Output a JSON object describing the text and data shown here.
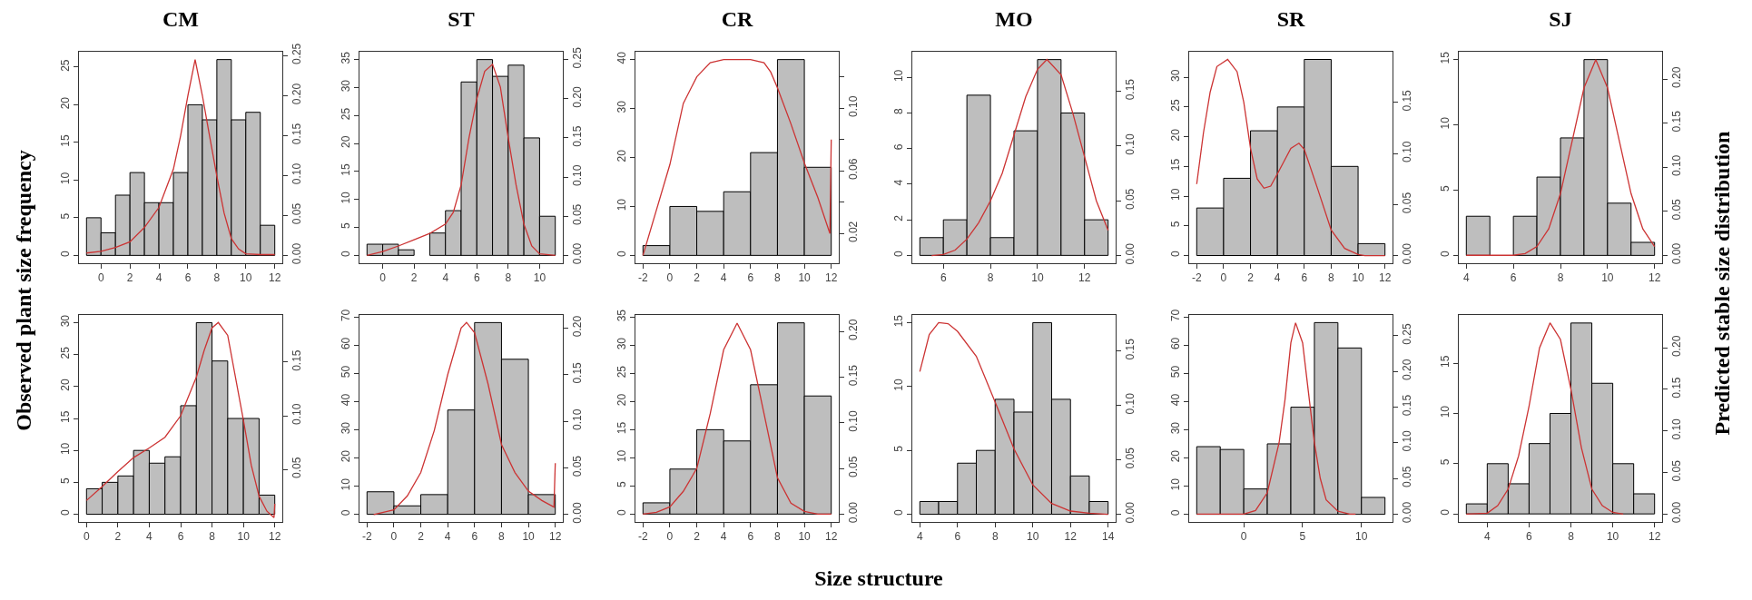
{
  "chart_data": [
    {
      "type": "histogram",
      "title": "CM",
      "color": "#bebebe",
      "bins": [
        -1,
        0,
        1,
        2,
        3,
        4,
        5,
        6,
        7,
        8,
        9,
        10,
        11,
        12
      ],
      "values": [
        5,
        3,
        8,
        11,
        7,
        7,
        11,
        20,
        18,
        26,
        18,
        19,
        4
      ],
      "xlim": [
        -1.52,
        12.52
      ],
      "xticks": [
        0,
        2,
        4,
        6,
        8,
        10,
        12
      ],
      "ylim": [
        -1.04,
        27.04
      ],
      "yticks": [
        0,
        5,
        10,
        15,
        20,
        25
      ],
      "y2lim": [
        -0.0098,
        0.2548
      ],
      "y2ticks": [
        {
          "value": 0,
          "label": "0.00"
        },
        {
          "value": 0.05,
          "label": "0.05"
        },
        {
          "value": 0.1,
          "label": "0.10"
        },
        {
          "value": 0.15,
          "label": "0.15"
        },
        {
          "value": 0.2,
          "label": "0.20"
        },
        {
          "value": 0.25,
          "label": "0.25"
        }
      ],
      "series": [
        {
          "type": "line",
          "axis": "y2",
          "color": "#cc3333",
          "x": [
            -1,
            0,
            1,
            2,
            3,
            4,
            5,
            5.5,
            6,
            6.5,
            7,
            7.5,
            8,
            8.5,
            9,
            9.5,
            10,
            11,
            12
          ],
          "values": [
            0.003,
            0.005,
            0.01,
            0.017,
            0.035,
            0.06,
            0.108,
            0.15,
            0.2,
            0.245,
            0.2,
            0.149,
            0.099,
            0.053,
            0.021,
            0.008,
            0.002,
            0.001,
            0.001
          ]
        }
      ]
    },
    {
      "type": "histogram",
      "title": "ST",
      "color": "#bebebe",
      "bins": [
        -1,
        0,
        1,
        2,
        3,
        4,
        5,
        6,
        7,
        8,
        9,
        10,
        11
      ],
      "values": [
        2,
        2,
        1,
        0,
        4,
        8,
        31,
        35,
        32,
        34,
        21,
        7
      ],
      "xlim": [
        -1.48,
        11.48
      ],
      "xticks": [
        0,
        2,
        4,
        6,
        8,
        10
      ],
      "ylim": [
        -1.4,
        36.4
      ],
      "yticks": [
        0,
        5,
        10,
        15,
        20,
        25,
        30,
        35
      ],
      "y2lim": [
        -0.01,
        0.26
      ],
      "y2ticks": [
        {
          "value": 0,
          "label": "0.00"
        },
        {
          "value": 0.05,
          "label": "0.05"
        },
        {
          "value": 0.1,
          "label": "0.10"
        },
        {
          "value": 0.15,
          "label": "0.15"
        },
        {
          "value": 0.2,
          "label": "0.20"
        },
        {
          "value": 0.25,
          "label": "0.25"
        }
      ],
      "series": [
        {
          "type": "line",
          "axis": "y2",
          "color": "#cc3333",
          "x": [
            -1,
            0,
            1,
            2,
            3,
            4,
            4.5,
            5,
            5.5,
            6,
            6.5,
            7,
            7.5,
            8,
            8.5,
            9,
            9.5,
            10,
            11
          ],
          "values": [
            0,
            0.005,
            0.012,
            0.02,
            0.028,
            0.04,
            0.055,
            0.09,
            0.15,
            0.2,
            0.235,
            0.244,
            0.215,
            0.15,
            0.09,
            0.04,
            0.012,
            0.002,
            0
          ]
        }
      ]
    },
    {
      "type": "histogram",
      "title": "CR",
      "color": "#bebebe",
      "bins": [
        -2,
        0,
        2,
        4,
        6,
        8,
        10,
        12
      ],
      "values": [
        2,
        10,
        9,
        13,
        21,
        40,
        18
      ],
      "xlim": [
        -2.56,
        12.56
      ],
      "xticks": [
        -2,
        0,
        2,
        4,
        6,
        8,
        10,
        12
      ],
      "ylim": [
        -1.6,
        41.6
      ],
      "yticks": [
        0,
        10,
        20,
        30,
        40
      ],
      "y2lim": [
        0.001,
        0.136
      ],
      "y2ticks": [
        0.02,
        {
          "value": 0.04,
          "label": null
        },
        0.06,
        {
          "value": 0.08,
          "label": null
        },
        {
          "value": 0.1,
          "label": "0.10"
        },
        {
          "value": 0.12,
          "label": null
        }
      ],
      "series": [
        {
          "type": "line",
          "axis": "y2",
          "color": "#cc3333",
          "x": [
            -2,
            -1,
            0,
            1,
            2,
            3,
            4,
            5,
            6,
            7,
            7.5,
            8,
            9,
            10,
            11,
            11.9,
            12
          ],
          "values": [
            0.006,
            0.035,
            0.064,
            0.103,
            0.12,
            0.129,
            0.131,
            0.131,
            0.131,
            0.129,
            0.123,
            0.113,
            0.09,
            0.065,
            0.043,
            0.02,
            0.08
          ]
        }
      ]
    },
    {
      "type": "histogram",
      "title": "MO",
      "color": "#bebebe",
      "bins": [
        5,
        6,
        7,
        8,
        9,
        10,
        11,
        12,
        13
      ],
      "values": [
        1,
        2,
        9,
        1,
        7,
        11,
        8,
        2
      ],
      "xlim": [
        4.68,
        13.32
      ],
      "xticks": [
        6,
        8,
        10,
        12
      ],
      "ylim": [
        -0.44,
        11.44
      ],
      "yticks": [
        0,
        2,
        4,
        6,
        8,
        10
      ],
      "y2lim": [
        -0.007,
        0.186
      ],
      "y2ticks": [
        {
          "value": 0,
          "label": "0.00"
        },
        {
          "value": 0.05,
          "label": "0.05"
        },
        {
          "value": 0.1,
          "label": "0.10"
        },
        {
          "value": 0.15,
          "label": "0.15"
        }
      ],
      "series": [
        {
          "type": "line",
          "axis": "y2",
          "color": "#cc3333",
          "x": [
            5.5,
            6,
            6.5,
            7,
            7.5,
            8,
            8.5,
            9,
            9.5,
            10,
            10.4,
            11,
            11.5,
            12,
            12.5,
            13
          ],
          "values": [
            0,
            0.001,
            0.005,
            0.015,
            0.03,
            0.05,
            0.075,
            0.11,
            0.145,
            0.17,
            0.179,
            0.165,
            0.13,
            0.09,
            0.05,
            0.023
          ]
        }
      ]
    },
    {
      "type": "histogram",
      "title": "SR",
      "color": "#bebebe",
      "bins": [
        -2,
        0,
        2,
        4,
        6,
        8,
        10,
        12
      ],
      "values": [
        8,
        13,
        21,
        25,
        33,
        15,
        2
      ],
      "xlim": [
        -2.56,
        12.56
      ],
      "xticks": [
        -2,
        0,
        2,
        4,
        6,
        8,
        10,
        12
      ],
      "ylim": [
        -1.3,
        34.3
      ],
      "yticks": [
        0,
        5,
        10,
        15,
        20,
        25,
        30
      ],
      "y2lim": [
        -0.0075,
        0.1995
      ],
      "y2ticks": [
        {
          "value": 0,
          "label": "0.00"
        },
        {
          "value": 0.05,
          "label": "0.05"
        },
        {
          "value": 0.1,
          "label": "0.10"
        },
        {
          "value": 0.15,
          "label": "0.15"
        }
      ],
      "series": [
        {
          "type": "line",
          "axis": "y2",
          "color": "#cc3333",
          "x": [
            -2,
            -1.5,
            -1,
            -0.5,
            0.3,
            1,
            1.5,
            2,
            2.5,
            3,
            3.5,
            4,
            5,
            5.6,
            6,
            7,
            8,
            9,
            10,
            10.5,
            12
          ],
          "values": [
            0.07,
            0.12,
            0.16,
            0.185,
            0.192,
            0.18,
            0.15,
            0.105,
            0.075,
            0.066,
            0.068,
            0.08,
            0.105,
            0.11,
            0.104,
            0.065,
            0.025,
            0.007,
            0.001,
            0,
            0
          ]
        }
      ]
    },
    {
      "type": "histogram",
      "title": "SJ",
      "color": "#bebebe",
      "bins": [
        4,
        5,
        6,
        7,
        8,
        9,
        10,
        11,
        12
      ],
      "values": [
        3,
        0,
        3,
        6,
        9,
        15,
        4,
        1
      ],
      "xlim": [
        3.68,
        12.32
      ],
      "xticks": [
        4,
        6,
        8,
        10,
        12
      ],
      "ylim": [
        -0.6,
        15.6
      ],
      "yticks": [
        0,
        5,
        10,
        15
      ],
      "y2lim": [
        -0.009,
        0.231
      ],
      "y2ticks": [
        {
          "value": 0,
          "label": "0.00"
        },
        {
          "value": 0.05,
          "label": "0.05"
        },
        {
          "value": 0.1,
          "label": "0.10"
        },
        {
          "value": 0.15,
          "label": "0.15"
        },
        {
          "value": 0.2,
          "label": "0.20"
        }
      ],
      "series": [
        {
          "type": "line",
          "axis": "y2",
          "color": "#cc3333",
          "x": [
            4,
            6,
            6.5,
            7,
            7.5,
            8,
            8.5,
            9,
            9.5,
            10,
            10.5,
            11,
            11.5,
            12
          ],
          "values": [
            0,
            0,
            0.002,
            0.01,
            0.03,
            0.07,
            0.13,
            0.19,
            0.222,
            0.19,
            0.13,
            0.07,
            0.03,
            0.01
          ]
        }
      ]
    },
    {
      "type": "histogram",
      "color": "#bebebe",
      "bins": [
        0,
        1,
        2,
        3,
        4,
        5,
        6,
        7,
        8,
        9,
        10,
        11,
        12
      ],
      "values": [
        4,
        5,
        6,
        10,
        8,
        9,
        17,
        30,
        24,
        15,
        15,
        3
      ],
      "xlim": [
        -0.48,
        12.48
      ],
      "xticks": [
        0,
        2,
        4,
        6,
        8,
        10,
        12
      ],
      "ylim": [
        -1.2,
        31.2
      ],
      "yticks": [
        0,
        5,
        10,
        15,
        20,
        25,
        30
      ],
      "y2lim": [
        0.001,
        0.194
      ],
      "y2ticks": [
        {
          "value": 0.05,
          "label": "0.05"
        },
        {
          "value": 0.1,
          "label": "0.10"
        },
        {
          "value": 0.15,
          "label": "0.15"
        }
      ],
      "series": [
        {
          "type": "line",
          "axis": "y2",
          "color": "#cc3333",
          "x": [
            0,
            1,
            2,
            3,
            4,
            5,
            6,
            7,
            7.5,
            8,
            8.4,
            9,
            10,
            10.5,
            11,
            11.5,
            11.95,
            12
          ],
          "values": [
            0.021,
            0.034,
            0.048,
            0.061,
            0.07,
            0.08,
            0.1,
            0.136,
            0.161,
            0.182,
            0.187,
            0.175,
            0.096,
            0.054,
            0.025,
            0.011,
            0.005,
            0.018
          ]
        }
      ]
    },
    {
      "type": "histogram",
      "color": "#bebebe",
      "bins": [
        -2,
        0,
        2,
        4,
        6,
        8,
        10,
        12
      ],
      "values": [
        8,
        3,
        7,
        37,
        68,
        55,
        7
      ],
      "xlim": [
        -2.56,
        12.56
      ],
      "xticks": [
        -2,
        0,
        2,
        4,
        6,
        8,
        10,
        12
      ],
      "ylim": [
        -2.7,
        70.7
      ],
      "yticks": [
        0,
        10,
        20,
        30,
        40,
        50,
        60,
        70
      ],
      "y2lim": [
        -0.008,
        0.214
      ],
      "y2ticks": [
        {
          "value": 0,
          "label": "0.00"
        },
        {
          "value": 0.05,
          "label": "0.05"
        },
        {
          "value": 0.1,
          "label": "0.10"
        },
        {
          "value": 0.15,
          "label": "0.15"
        },
        {
          "value": 0.2,
          "label": "0.20"
        }
      ],
      "series": [
        {
          "type": "line",
          "axis": "y2",
          "color": "#cc3333",
          "x": [
            -1.5,
            0,
            1,
            2,
            3,
            4,
            5,
            5.4,
            6,
            7,
            8,
            9,
            10,
            11,
            11.9,
            12
          ],
          "values": [
            0,
            0.005,
            0.02,
            0.045,
            0.09,
            0.15,
            0.2,
            0.206,
            0.195,
            0.14,
            0.075,
            0.045,
            0.025,
            0.015,
            0.008,
            0.055
          ]
        }
      ]
    },
    {
      "type": "histogram",
      "color": "#bebebe",
      "bins": [
        -2,
        0,
        2,
        4,
        6,
        8,
        10,
        12
      ],
      "values": [
        2,
        8,
        15,
        13,
        23,
        34,
        21
      ],
      "xlim": [
        -2.56,
        12.56
      ],
      "xticks": [
        -2,
        0,
        2,
        4,
        6,
        8,
        10,
        12
      ],
      "ylim": [
        -1.4,
        35.4
      ],
      "yticks": [
        0,
        5,
        10,
        15,
        20,
        25,
        30,
        35
      ],
      "y2lim": [
        -0.0085,
        0.218
      ],
      "y2ticks": [
        {
          "value": 0,
          "label": "0.00"
        },
        {
          "value": 0.05,
          "label": "0.05"
        },
        {
          "value": 0.1,
          "label": "0.10"
        },
        {
          "value": 0.15,
          "label": "0.15"
        },
        {
          "value": 0.2,
          "label": "0.20"
        }
      ],
      "series": [
        {
          "type": "line",
          "axis": "y2",
          "color": "#cc3333",
          "x": [
            -2,
            -1,
            0,
            1,
            2,
            3,
            4,
            5,
            6,
            7,
            8,
            9,
            10,
            11,
            12
          ],
          "values": [
            0,
            0.002,
            0.008,
            0.025,
            0.05,
            0.11,
            0.18,
            0.209,
            0.18,
            0.11,
            0.04,
            0.012,
            0.003,
            0,
            0
          ]
        }
      ]
    },
    {
      "type": "histogram",
      "color": "#bebebe",
      "bins": [
        4,
        5,
        6,
        7,
        8,
        9,
        10,
        11,
        12,
        13,
        14
      ],
      "values": [
        1,
        1,
        4,
        5,
        9,
        8,
        15,
        9,
        3,
        1
      ],
      "xlim": [
        3.6,
        14.4
      ],
      "xticks": [
        4,
        6,
        8,
        10,
        12,
        14
      ],
      "ylim": [
        -0.6,
        15.6
      ],
      "yticks": [
        0,
        5,
        10,
        15
      ],
      "y2lim": [
        -0.007,
        0.183
      ],
      "y2ticks": [
        {
          "value": 0,
          "label": "0.00"
        },
        {
          "value": 0.05,
          "label": "0.05"
        },
        {
          "value": 0.1,
          "label": "0.10"
        },
        {
          "value": 0.15,
          "label": "0.15"
        }
      ],
      "series": [
        {
          "type": "line",
          "axis": "y2",
          "color": "#cc3333",
          "x": [
            4,
            4.5,
            5,
            5.5,
            6,
            7,
            8,
            9,
            10,
            11,
            12,
            13,
            14
          ],
          "values": [
            0.131,
            0.165,
            0.176,
            0.175,
            0.168,
            0.145,
            0.103,
            0.06,
            0.027,
            0.01,
            0.003,
            0.001,
            0
          ]
        }
      ]
    },
    {
      "type": "histogram",
      "color": "#bebebe",
      "bins": [
        -4,
        -2,
        0,
        2,
        4,
        6,
        8,
        10,
        12
      ],
      "values": [
        24,
        23,
        9,
        25,
        38,
        68,
        59,
        6
      ],
      "xlim": [
        -4.64,
        12.64
      ],
      "xticks": [
        0,
        5,
        10
      ],
      "ylim": [
        -2.7,
        70.7
      ],
      "yticks": [
        0,
        10,
        20,
        30,
        40,
        50,
        60,
        70
      ],
      "y2lim": [
        -0.011,
        0.279
      ],
      "y2ticks": [
        {
          "value": 0,
          "label": "0.00"
        },
        {
          "value": 0.05,
          "label": "0.05"
        },
        {
          "value": 0.1,
          "label": "0.10"
        },
        {
          "value": 0.15,
          "label": "0.15"
        },
        {
          "value": 0.2,
          "label": "0.20"
        },
        {
          "value": 0.25,
          "label": "0.25"
        }
      ],
      "series": [
        {
          "type": "line",
          "axis": "y2",
          "color": "#cc3333",
          "x": [
            -4,
            0,
            1,
            2,
            3,
            3.5,
            4,
            4.4,
            5,
            5.5,
            6,
            6.5,
            7,
            8,
            9,
            9.5
          ],
          "values": [
            0,
            0,
            0.005,
            0.03,
            0.1,
            0.16,
            0.24,
            0.268,
            0.24,
            0.17,
            0.1,
            0.05,
            0.02,
            0.004,
            0,
            0
          ]
        }
      ]
    },
    {
      "type": "histogram",
      "color": "#bebebe",
      "bins": [
        3,
        4,
        5,
        6,
        7,
        8,
        9,
        10,
        11,
        12
      ],
      "values": [
        1,
        5,
        3,
        7,
        10,
        19,
        13,
        5,
        2
      ],
      "xlim": [
        2.64,
        12.36
      ],
      "xticks": [
        4,
        6,
        8,
        10,
        12
      ],
      "ylim": [
        -0.8,
        19.8
      ],
      "yticks": [
        0,
        5,
        10,
        15
      ],
      "y2lim": [
        -0.0095,
        0.2395
      ],
      "y2ticks": [
        {
          "value": 0,
          "label": "0.00"
        },
        {
          "value": 0.05,
          "label": "0.05"
        },
        {
          "value": 0.1,
          "label": "0.10"
        },
        {
          "value": 0.15,
          "label": "0.15"
        },
        {
          "value": 0.2,
          "label": "0.20"
        }
      ],
      "series": [
        {
          "type": "line",
          "axis": "y2",
          "color": "#cc3333",
          "x": [
            3,
            4,
            4.5,
            5,
            5.5,
            6,
            6.5,
            7,
            7.5,
            8,
            8.5,
            9,
            9.5,
            10,
            10.5
          ],
          "values": [
            0,
            0.001,
            0.01,
            0.03,
            0.07,
            0.13,
            0.2,
            0.23,
            0.21,
            0.15,
            0.08,
            0.03,
            0.01,
            0.002,
            0
          ]
        }
      ]
    },
    {
      "type": "other",
      "xlabel": "Size structure",
      "ylabel": "Observed plant size frequency",
      "y2label": "Predicted stable size distribution"
    }
  ]
}
